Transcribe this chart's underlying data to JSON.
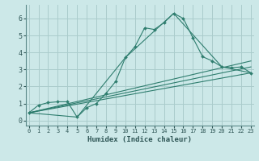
{
  "xlabel": "Humidex (Indice chaleur)",
  "ylabel": "",
  "background_color": "#cce8e8",
  "grid_color": "#aacccc",
  "line_color": "#2e7d6e",
  "series1_x": [
    0,
    1,
    2,
    3,
    4,
    5,
    6,
    7,
    8,
    9,
    10,
    11,
    12,
    13,
    14,
    15,
    16,
    17,
    18,
    19,
    20,
    21,
    22,
    23
  ],
  "series1_y": [
    0.45,
    0.9,
    1.05,
    1.1,
    1.1,
    0.2,
    0.75,
    1.0,
    1.6,
    2.3,
    3.7,
    4.35,
    5.45,
    5.35,
    5.75,
    6.3,
    6.0,
    4.85,
    3.75,
    3.5,
    3.15,
    3.1,
    3.15,
    2.8
  ],
  "series2_x": [
    0,
    5,
    10,
    15,
    20,
    23
  ],
  "series2_y": [
    0.45,
    0.2,
    3.7,
    6.3,
    3.15,
    2.8
  ],
  "series3_x": [
    0,
    23
  ],
  "series3_y": [
    0.45,
    2.8
  ],
  "series4_x": [
    0,
    23
  ],
  "series4_y": [
    0.45,
    3.15
  ],
  "series5_x": [
    0,
    23
  ],
  "series5_y": [
    0.45,
    3.5
  ],
  "xlim": [
    -0.3,
    23.3
  ],
  "ylim": [
    -0.3,
    6.8
  ],
  "xticks": [
    0,
    1,
    2,
    3,
    4,
    5,
    6,
    7,
    8,
    9,
    10,
    11,
    12,
    13,
    14,
    15,
    16,
    17,
    18,
    19,
    20,
    21,
    22,
    23
  ],
  "yticks": [
    0,
    1,
    2,
    3,
    4,
    5,
    6
  ]
}
